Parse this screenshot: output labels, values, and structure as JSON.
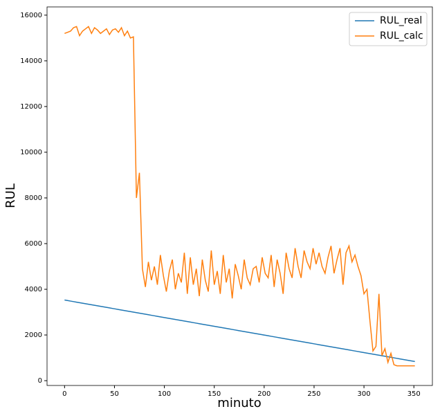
{
  "chart_data": {
    "type": "line",
    "xlabel": "minuto",
    "ylabel": "RUL",
    "x": [
      0,
      3,
      6,
      9,
      12,
      15,
      18,
      21,
      24,
      27,
      30,
      33,
      36,
      39,
      42,
      45,
      48,
      51,
      54,
      57,
      60,
      63,
      66,
      69,
      72,
      75,
      78,
      81,
      84,
      87,
      90,
      93,
      96,
      99,
      102,
      105,
      108,
      111,
      114,
      117,
      120,
      123,
      126,
      129,
      132,
      135,
      138,
      141,
      144,
      147,
      150,
      153,
      156,
      159,
      162,
      165,
      168,
      171,
      174,
      177,
      180,
      183,
      186,
      189,
      192,
      195,
      198,
      201,
      204,
      207,
      210,
      213,
      216,
      219,
      222,
      225,
      228,
      231,
      234,
      237,
      240,
      243,
      246,
      249,
      252,
      255,
      258,
      261,
      264,
      267,
      270,
      273,
      276,
      279,
      282,
      285,
      288,
      291,
      294,
      297,
      300,
      303,
      306,
      309,
      312,
      315,
      318,
      321,
      324,
      327,
      330,
      333,
      336,
      339,
      342,
      345,
      348,
      351
    ],
    "series": [
      {
        "name": "RUL_real",
        "color": "#1f77b4",
        "values": [
          3530,
          3507,
          3484,
          3461,
          3438,
          3415,
          3392,
          3369,
          3346,
          3323,
          3300,
          3277,
          3254,
          3231,
          3208,
          3185,
          3162,
          3139,
          3116,
          3093,
          3070,
          3047,
          3024,
          3001,
          2978,
          2955,
          2932,
          2909,
          2886,
          2863,
          2840,
          2817,
          2794,
          2771,
          2748,
          2725,
          2702,
          2679,
          2656,
          2633,
          2610,
          2587,
          2564,
          2541,
          2518,
          2495,
          2472,
          2449,
          2426,
          2403,
          2380,
          2357,
          2334,
          2311,
          2288,
          2265,
          2242,
          2219,
          2196,
          2173,
          2150,
          2127,
          2104,
          2081,
          2058,
          2035,
          2012,
          1989,
          1966,
          1943,
          1920,
          1897,
          1874,
          1851,
          1828,
          1805,
          1782,
          1759,
          1736,
          1713,
          1690,
          1667,
          1644,
          1621,
          1598,
          1575,
          1552,
          1529,
          1506,
          1483,
          1460,
          1437,
          1414,
          1391,
          1368,
          1345,
          1322,
          1299,
          1276,
          1253,
          1230,
          1207,
          1184,
          1161,
          1138,
          1115,
          1092,
          1069,
          1046,
          1023,
          1000,
          977,
          954,
          931,
          908,
          885,
          862,
          839
        ]
      },
      {
        "name": "RUL_calc",
        "color": "#ff7f0e",
        "values": [
          15200,
          15250,
          15300,
          15450,
          15500,
          15100,
          15300,
          15400,
          15500,
          15200,
          15450,
          15350,
          15200,
          15300,
          15400,
          15150,
          15350,
          15400,
          15250,
          15450,
          15100,
          15300,
          15000,
          15050,
          8000,
          9100,
          4900,
          4100,
          5200,
          4400,
          5000,
          4200,
          5500,
          4600,
          3900,
          4800,
          5300,
          4000,
          4700,
          4300,
          5600,
          3800,
          5400,
          4200,
          4900,
          3700,
          5300,
          4400,
          3900,
          5700,
          4200,
          4800,
          3800,
          5500,
          4300,
          4900,
          3600,
          5100,
          4600,
          4000,
          5300,
          4500,
          4200,
          4900,
          5000,
          4300,
          5400,
          4700,
          4500,
          5500,
          4100,
          5300,
          4700,
          3800,
          5600,
          4900,
          4500,
          5800,
          5000,
          4500,
          5700,
          5200,
          4900,
          5800,
          5100,
          5600,
          5000,
          4700,
          5400,
          5900,
          4700,
          5300,
          5800,
          4200,
          5600,
          5900,
          5200,
          5500,
          5000,
          4600,
          3800,
          4000,
          2600,
          1300,
          1500,
          3800,
          1100,
          1400,
          800,
          1200,
          700,
          650,
          650,
          650,
          650,
          650,
          650,
          650
        ]
      }
    ],
    "xlim": [
      -17.55,
      368.55
    ],
    "xticks": [
      0,
      50,
      100,
      150,
      200,
      250,
      300,
      350
    ],
    "ylim": [
      -210,
      16360
    ],
    "yticks": [
      0,
      2000,
      4000,
      6000,
      8000,
      10000,
      12000,
      14000,
      16000
    ],
    "grid": false,
    "legend": "upper right"
  }
}
